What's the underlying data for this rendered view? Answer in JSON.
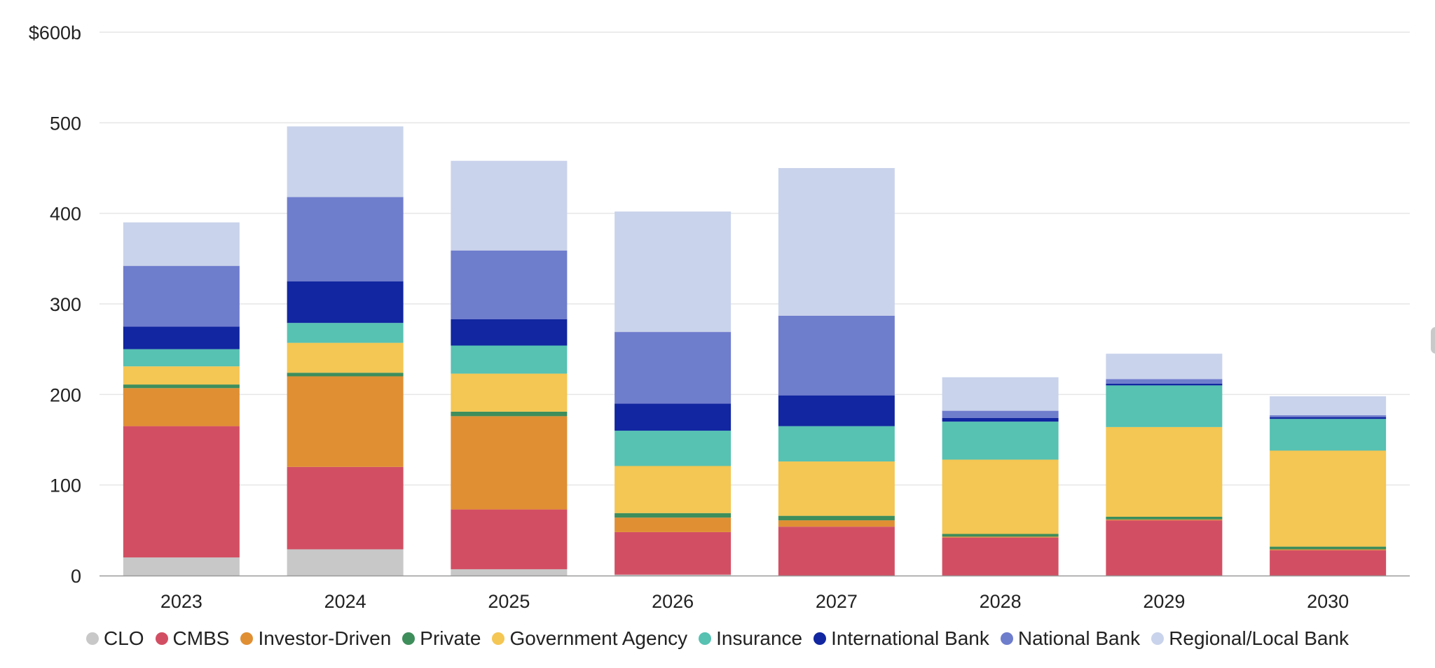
{
  "chart_data": {
    "type": "bar",
    "stacked": true,
    "title": "",
    "xlabel": "",
    "ylabel": "",
    "ylim": [
      0,
      600
    ],
    "yticks": [
      0,
      100,
      200,
      300,
      400,
      500,
      600
    ],
    "ytick_labels": [
      "0",
      "100",
      "200",
      "300",
      "400",
      "500",
      "$600b"
    ],
    "grid": true,
    "legend_position": "bottom",
    "categories": [
      "2023",
      "2024",
      "2025",
      "2026",
      "2027",
      "2028",
      "2029",
      "2030"
    ],
    "series": [
      {
        "name": "CLO",
        "color": "#c8c8c8",
        "values": [
          20,
          29,
          7,
          1,
          0,
          0,
          0,
          0
        ]
      },
      {
        "name": "CMBS",
        "color": "#d24f63",
        "values": [
          145,
          91,
          66,
          47,
          54,
          42,
          61,
          28
        ]
      },
      {
        "name": "Investor-Driven",
        "color": "#e08f33",
        "values": [
          42,
          100,
          103,
          16,
          7,
          1,
          1,
          1
        ]
      },
      {
        "name": "Private",
        "color": "#3e8e5b",
        "values": [
          4,
          4,
          5,
          5,
          5,
          3,
          3,
          3
        ]
      },
      {
        "name": "Government Agency",
        "color": "#f4c653",
        "values": [
          20,
          33,
          42,
          52,
          60,
          82,
          99,
          106
        ]
      },
      {
        "name": "Insurance",
        "color": "#57c1b2",
        "values": [
          19,
          22,
          31,
          39,
          39,
          42,
          46,
          35
        ]
      },
      {
        "name": "International Bank",
        "color": "#1126a0",
        "values": [
          25,
          46,
          29,
          30,
          34,
          4,
          2,
          2
        ]
      },
      {
        "name": "National Bank",
        "color": "#6f7dcd",
        "values": [
          67,
          93,
          76,
          79,
          88,
          8,
          5,
          2
        ]
      },
      {
        "name": "Regional/Local Bank",
        "color": "#c9d3eb",
        "values": [
          48,
          78,
          99,
          133,
          163,
          37,
          28,
          21
        ]
      }
    ]
  }
}
